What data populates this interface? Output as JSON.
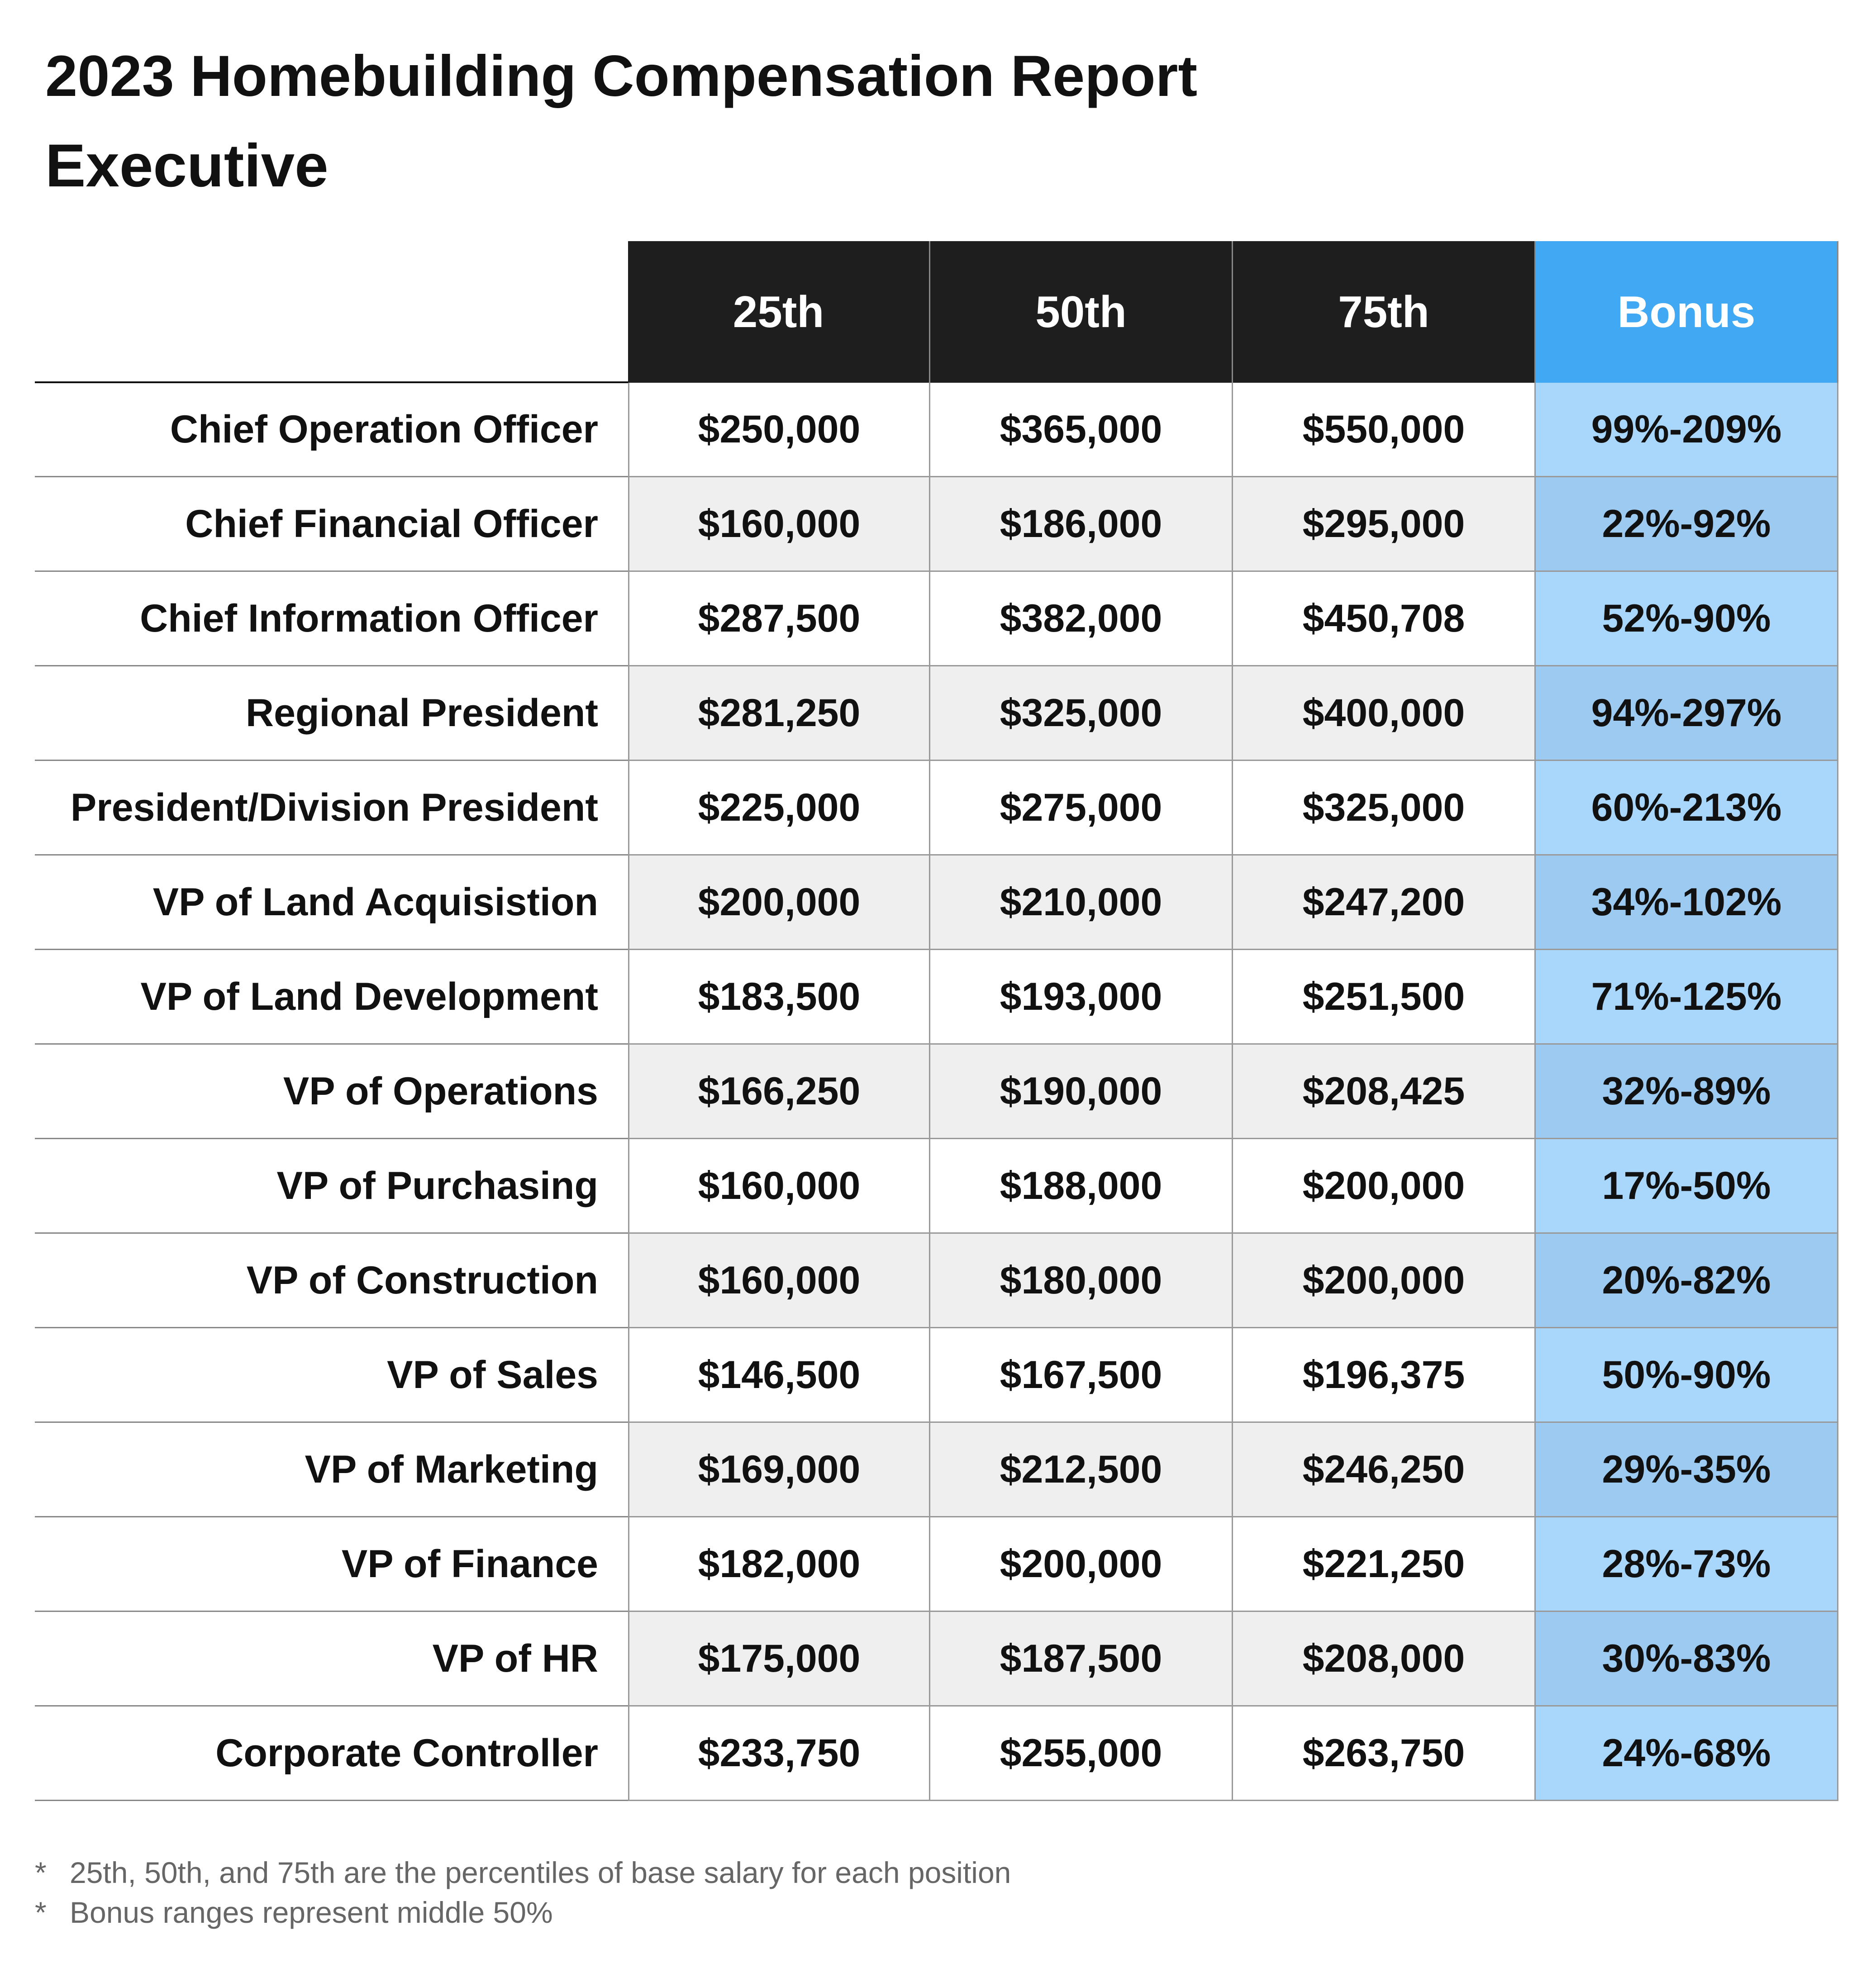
{
  "header": {
    "title": "2023 Homebuilding Compensation Report",
    "subtitle": "Executive"
  },
  "table": {
    "columns": [
      "25th",
      "50th",
      "75th",
      "Bonus"
    ],
    "rows": [
      [
        "Chief Operation Officer",
        "$250,000",
        "$365,000",
        "$550,000",
        "99%-209%"
      ],
      [
        "Chief Financial Officer",
        "$160,000",
        "$186,000",
        "$295,000",
        "22%-92%"
      ],
      [
        "Chief Information Officer",
        "$287,500",
        "$382,000",
        "$450,708",
        "52%-90%"
      ],
      [
        "Regional President",
        "$281,250",
        "$325,000",
        "$400,000",
        "94%-297%"
      ],
      [
        "President/Division President",
        "$225,000",
        "$275,000",
        "$325,000",
        "60%-213%"
      ],
      [
        "VP of Land Acquisistion",
        "$200,000",
        "$210,000",
        "$247,200",
        "34%-102%"
      ],
      [
        "VP of Land Development",
        "$183,500",
        "$193,000",
        "$251,500",
        "71%-125%"
      ],
      [
        "VP of Operations",
        "$166,250",
        "$190,000",
        "$208,425",
        "32%-89%"
      ],
      [
        "VP of Purchasing",
        "$160,000",
        "$188,000",
        "$200,000",
        "17%-50%"
      ],
      [
        "VP of Construction",
        "$160,000",
        "$180,000",
        "$200,000",
        "20%-82%"
      ],
      [
        "VP of Sales",
        "$146,500",
        "$167,500",
        "$196,375",
        "50%-90%"
      ],
      [
        "VP of Marketing",
        "$169,000",
        "$212,500",
        "$246,250",
        "29%-35%"
      ],
      [
        "VP of Finance",
        "$182,000",
        "$200,000",
        "$221,250",
        "28%-73%"
      ],
      [
        "VP of HR",
        "$175,000",
        "$187,500",
        "$208,000",
        "30%-83%"
      ],
      [
        "Corporate Controller",
        "$233,750",
        "$255,000",
        "$263,750",
        "24%-68%"
      ]
    ]
  },
  "footnotes": [
    {
      "marker": "*",
      "text": "25th, 50th, and 75th are the percentiles of base salary for each position"
    },
    {
      "marker": "*",
      "text": "Bonus ranges represent middle 50%"
    }
  ]
}
